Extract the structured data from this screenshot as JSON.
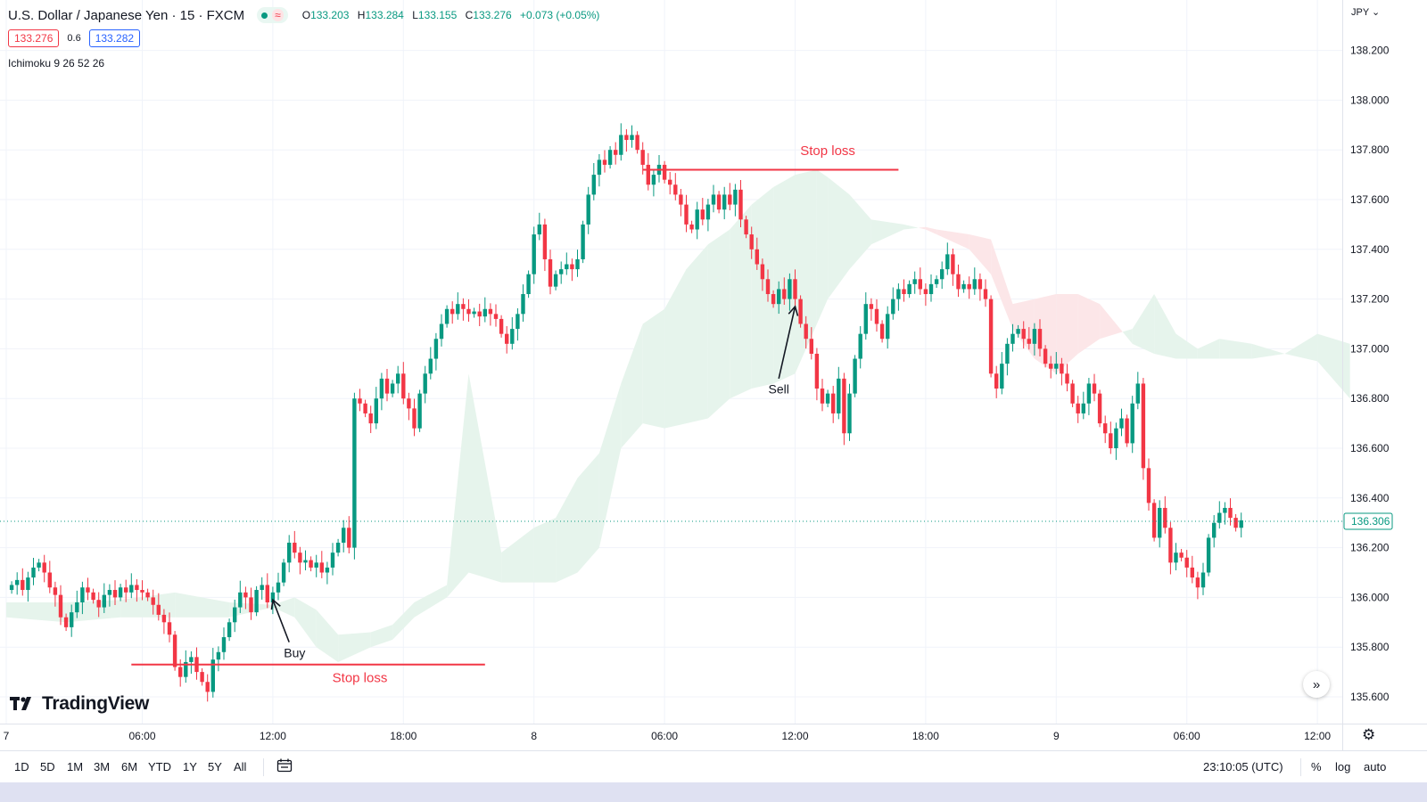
{
  "header": {
    "symbol": "U.S. Dollar / Japanese Yen · 15 · FXCM",
    "ohlc": {
      "o": "133.203",
      "h": "133.284",
      "l": "133.155",
      "c": "133.276",
      "change": "+0.073 (+0.05%)"
    },
    "sell_price": "133.276",
    "spread": "0.6",
    "buy_price": "133.282",
    "indicator": "Ichimoku 9 26 52 26"
  },
  "logo_text": "TradingView",
  "toolbar": {
    "timeframes": [
      "1D",
      "5D",
      "1M",
      "3M",
      "6M",
      "YTD",
      "1Y",
      "5Y",
      "All"
    ],
    "clock": "23:10:05 (UTC)",
    "percent": "%",
    "log": "log",
    "auto": "auto"
  },
  "chart_data": {
    "type": "candlestick",
    "currency": "JPY",
    "ylim": [
      135.52,
      138.42
    ],
    "yticks": [
      135.6,
      135.8,
      136.0,
      136.2,
      136.4,
      136.6,
      136.8,
      137.0,
      137.2,
      137.4,
      137.6,
      137.8,
      138.0,
      138.2
    ],
    "ytick_labels": [
      "135.600",
      "135.800",
      "136.000",
      "136.200",
      "136.400",
      "136.600",
      "136.800",
      "137.000",
      "137.200",
      "137.400",
      "137.600",
      "137.800",
      "138.000",
      "138.200"
    ],
    "xticks": [
      {
        "label": "7",
        "bar": -1
      },
      {
        "label": "06:00",
        "bar": 24
      },
      {
        "label": "12:00",
        "bar": 48
      },
      {
        "label": "18:00",
        "bar": 72
      },
      {
        "label": "8",
        "bar": 96
      },
      {
        "label": "06:00",
        "bar": 120
      },
      {
        "label": "12:00",
        "bar": 144
      },
      {
        "label": "18:00",
        "bar": 168
      },
      {
        "label": "9",
        "bar": 192
      },
      {
        "label": "06:00",
        "bar": 216
      },
      {
        "label": "12:00",
        "bar": 240
      }
    ],
    "last_price": "136.306",
    "last_value": 136.306,
    "closes": [
      136.05,
      136.07,
      136.03,
      136.08,
      136.12,
      136.14,
      136.1,
      136.04,
      136.01,
      135.92,
      135.88,
      135.94,
      135.98,
      136.04,
      136.02,
      135.99,
      135.96,
      136.01,
      136.03,
      136.0,
      136.04,
      136.02,
      136.05,
      136.03,
      136.02,
      136.0,
      135.97,
      135.93,
      135.9,
      135.85,
      135.72,
      135.68,
      135.74,
      135.76,
      135.7,
      135.66,
      135.62,
      135.75,
      135.78,
      135.84,
      135.9,
      135.96,
      136.02,
      136.0,
      135.94,
      136.03,
      136.05,
      135.98,
      136.02,
      136.06,
      136.14,
      136.22,
      136.18,
      136.14,
      136.15,
      136.12,
      136.14,
      136.1,
      136.12,
      136.18,
      136.22,
      136.28,
      136.2,
      136.8,
      136.78,
      136.74,
      136.7,
      136.8,
      136.88,
      136.82,
      136.86,
      136.9,
      136.8,
      136.76,
      136.68,
      136.82,
      136.9,
      136.96,
      137.04,
      137.1,
      137.16,
      137.14,
      137.18,
      137.16,
      137.14,
      137.15,
      137.13,
      137.16,
      137.14,
      137.12,
      137.06,
      137.02,
      137.08,
      137.14,
      137.22,
      137.3,
      137.46,
      137.5,
      137.36,
      137.25,
      137.3,
      137.32,
      137.34,
      137.32,
      137.36,
      137.5,
      137.62,
      137.7,
      137.76,
      137.74,
      137.8,
      137.78,
      137.86,
      137.84,
      137.86,
      137.8,
      137.74,
      137.66,
      137.7,
      137.74,
      137.68,
      137.66,
      137.62,
      137.58,
      137.5,
      137.48,
      137.56,
      137.52,
      137.58,
      137.62,
      137.56,
      137.62,
      137.58,
      137.64,
      137.52,
      137.46,
      137.4,
      137.34,
      137.28,
      137.22,
      137.18,
      137.24,
      137.2,
      137.28,
      137.2,
      137.1,
      137.04,
      136.98,
      136.84,
      136.78,
      136.82,
      136.74,
      136.88,
      136.66,
      136.82,
      136.96,
      137.06,
      137.18,
      137.16,
      137.1,
      137.04,
      137.14,
      137.2,
      137.24,
      137.22,
      137.26,
      137.28,
      137.24,
      137.22,
      137.26,
      137.28,
      137.32,
      137.38,
      137.3,
      137.24,
      137.26,
      137.24,
      137.28,
      137.24,
      137.2,
      136.9,
      136.84,
      136.94,
      137.02,
      137.06,
      137.08,
      137.04,
      137.02,
      137.08,
      137.0,
      136.94,
      136.92,
      136.94,
      136.9,
      136.86,
      136.78,
      136.74,
      136.78,
      136.86,
      136.82,
      136.7,
      136.66,
      136.6,
      136.68,
      136.72,
      136.62,
      136.78,
      136.86,
      136.52,
      136.38,
      136.24,
      136.36,
      136.28,
      136.14,
      136.18,
      136.16,
      136.12,
      136.08,
      136.04,
      136.1,
      136.24,
      136.3,
      136.34,
      136.36,
      136.32,
      136.28,
      136.31
    ],
    "ichimoku_cloud": {
      "lead_a": [
        [
          -1,
          135.98
        ],
        [
          10,
          135.98
        ],
        [
          20,
          135.99
        ],
        [
          30,
          136.02
        ],
        [
          40,
          135.98
        ],
        [
          48,
          135.97
        ],
        [
          52,
          136.0
        ],
        [
          56,
          135.95
        ],
        [
          60,
          135.85
        ],
        [
          66,
          135.86
        ],
        [
          70,
          135.89
        ],
        [
          74,
          135.98
        ],
        [
          80,
          136.05
        ],
        [
          84,
          136.9
        ],
        [
          90,
          136.18
        ],
        [
          96,
          136.28
        ],
        [
          100,
          136.32
        ],
        [
          104,
          136.48
        ],
        [
          108,
          136.58
        ],
        [
          112,
          136.86
        ],
        [
          116,
          137.1
        ],
        [
          120,
          137.16
        ],
        [
          124,
          137.32
        ],
        [
          128,
          137.42
        ],
        [
          132,
          137.48
        ],
        [
          136,
          137.58
        ],
        [
          140,
          137.65
        ],
        [
          144,
          137.7
        ],
        [
          148,
          137.72
        ],
        [
          150,
          137.69
        ],
        [
          154,
          137.62
        ],
        [
          158,
          137.52
        ],
        [
          164,
          137.5
        ],
        [
          168,
          137.48
        ],
        [
          170,
          137.46
        ],
        [
          176,
          137.4
        ],
        [
          180,
          137.3
        ],
        [
          184,
          137.08
        ],
        [
          188,
          136.96
        ],
        [
          192,
          136.9
        ],
        [
          196,
          136.98
        ],
        [
          200,
          137.04
        ],
        [
          206,
          137.08
        ],
        [
          210,
          137.22
        ],
        [
          214,
          137.06
        ],
        [
          218,
          137.0
        ],
        [
          222,
          137.04
        ],
        [
          228,
          137.02
        ],
        [
          234,
          136.98
        ],
        [
          240,
          137.06
        ],
        [
          246,
          137.02
        ]
      ],
      "lead_b": [
        [
          -1,
          135.92
        ],
        [
          10,
          135.9
        ],
        [
          20,
          135.92
        ],
        [
          30,
          135.92
        ],
        [
          40,
          135.92
        ],
        [
          48,
          135.96
        ],
        [
          52,
          135.92
        ],
        [
          56,
          135.8
        ],
        [
          60,
          135.74
        ],
        [
          66,
          135.8
        ],
        [
          70,
          135.83
        ],
        [
          74,
          135.92
        ],
        [
          80,
          136.0
        ],
        [
          84,
          136.1
        ],
        [
          90,
          136.06
        ],
        [
          96,
          136.06
        ],
        [
          100,
          136.06
        ],
        [
          104,
          136.1
        ],
        [
          108,
          136.2
        ],
        [
          112,
          136.6
        ],
        [
          116,
          136.7
        ],
        [
          120,
          136.68
        ],
        [
          124,
          136.7
        ],
        [
          128,
          136.72
        ],
        [
          132,
          136.8
        ],
        [
          136,
          136.84
        ],
        [
          140,
          136.86
        ],
        [
          144,
          136.9
        ],
        [
          148,
          137.1
        ],
        [
          150,
          137.2
        ],
        [
          154,
          137.32
        ],
        [
          158,
          137.42
        ],
        [
          164,
          137.48
        ],
        [
          168,
          137.49
        ],
        [
          170,
          137.48
        ],
        [
          176,
          137.46
        ],
        [
          180,
          137.44
        ],
        [
          184,
          137.18
        ],
        [
          188,
          137.2
        ],
        [
          192,
          137.22
        ],
        [
          196,
          137.22
        ],
        [
          200,
          137.18
        ],
        [
          206,
          137.02
        ],
        [
          210,
          136.98
        ],
        [
          214,
          136.96
        ],
        [
          218,
          136.96
        ],
        [
          222,
          136.96
        ],
        [
          228,
          136.96
        ],
        [
          234,
          136.98
        ],
        [
          240,
          136.95
        ],
        [
          246,
          136.8
        ]
      ]
    },
    "annotations": [
      {
        "type": "line",
        "bar1": 22,
        "bar2": 87,
        "y": 135.73,
        "color": "#f23645"
      },
      {
        "type": "text",
        "text": "Stop loss",
        "bar": 64,
        "y": 135.66,
        "color": "#f23645"
      },
      {
        "type": "line",
        "bar1": 116,
        "bar2": 163,
        "y": 137.72,
        "color": "#f23645"
      },
      {
        "type": "text",
        "text": "Stop loss",
        "bar": 150,
        "y": 137.78,
        "color": "#f23645"
      },
      {
        "type": "arrow",
        "text": "Buy",
        "bar_from": 51,
        "y_from": 135.82,
        "bar_to": 48,
        "y_to": 135.99,
        "label_bar": 52,
        "label_y": 135.76
      },
      {
        "type": "arrow",
        "text": "Sell",
        "bar_from": 141,
        "y_from": 136.88,
        "bar_to": 144,
        "y_to": 137.17,
        "label_bar": 141,
        "label_y": 136.82
      }
    ]
  }
}
